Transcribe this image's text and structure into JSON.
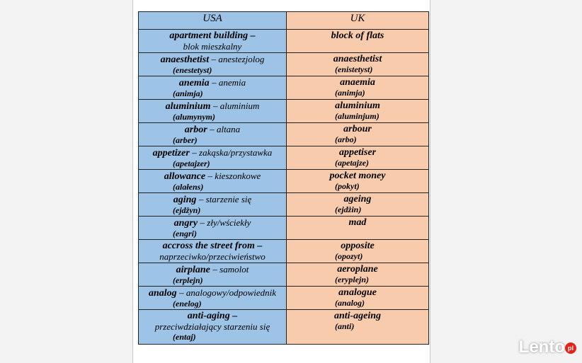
{
  "table": {
    "header": [
      "USA",
      "UK"
    ],
    "rows": [
      {
        "usa": {
          "term": "apartment building –",
          "translation": "blok mieszkalny",
          "pron": ""
        },
        "uk": {
          "term": "block of flats",
          "pron": ""
        }
      },
      {
        "usa": {
          "term": "anaesthetist",
          "translation": "– anestezjolog",
          "pron": "(enestetyst)"
        },
        "uk": {
          "term": "anaesthetist",
          "pron": "(enistetyst)"
        }
      },
      {
        "usa": {
          "term": "anemia",
          "translation": "– anemia",
          "pron": "(animja)"
        },
        "uk": {
          "term": "anaemia",
          "pron": "(animja)"
        }
      },
      {
        "usa": {
          "term": "aluminium",
          "translation": "– aluminium",
          "pron": "(alumynym)"
        },
        "uk": {
          "term": "aluminium",
          "pron": "(aluminjum)"
        }
      },
      {
        "usa": {
          "term": "arbor",
          "translation": "– altana",
          "pron": "(arber)"
        },
        "uk": {
          "term": "arbour",
          "pron": "(arbo)"
        }
      },
      {
        "usa": {
          "term": "appetizer",
          "translation": "– zakąska/przystawka",
          "pron": "(apetajzer)"
        },
        "uk": {
          "term": "appetiser",
          "pron": "(apetajze)"
        }
      },
      {
        "usa": {
          "term": "allowance",
          "translation": "– kieszonkowe",
          "pron": "(alałens)"
        },
        "uk": {
          "term": "pocket money",
          "pron": "(pokyt)"
        }
      },
      {
        "usa": {
          "term": "aging",
          "translation": "– starzenie się",
          "pron": "(ejdżyn)"
        },
        "uk": {
          "term": "ageing",
          "pron": "(ejdżin)"
        }
      },
      {
        "usa": {
          "term": "angry",
          "translation": "– zły/wściekły",
          "pron": "(engri)"
        },
        "uk": {
          "term": "mad",
          "pron": ""
        }
      },
      {
        "usa": {
          "term": "accross the street from –",
          "translation": "naprzeciwko/przeciwieństwo",
          "pron": ""
        },
        "uk": {
          "term": "opposite",
          "pron": "(opozyt)"
        }
      },
      {
        "usa": {
          "term": "airplane",
          "translation": "– samolot",
          "pron": "(erplejn)"
        },
        "uk": {
          "term": "aeroplane",
          "pron": "(eryplejn)"
        }
      },
      {
        "usa": {
          "term": "analog",
          "translation": "– analogowy/odpowiednik",
          "pron": "(enelog)"
        },
        "uk": {
          "term": "analogue",
          "pron": "(analog)"
        }
      },
      {
        "usa": {
          "term": "anti-aging –",
          "translation": "przeciwdziałający starzeniu się",
          "pron": "(entaj)"
        },
        "uk": {
          "term": "anti-ageing",
          "pron": "(anti)"
        }
      }
    ]
  },
  "watermark": {
    "brand": "Lento",
    "suffix": "pl"
  }
}
